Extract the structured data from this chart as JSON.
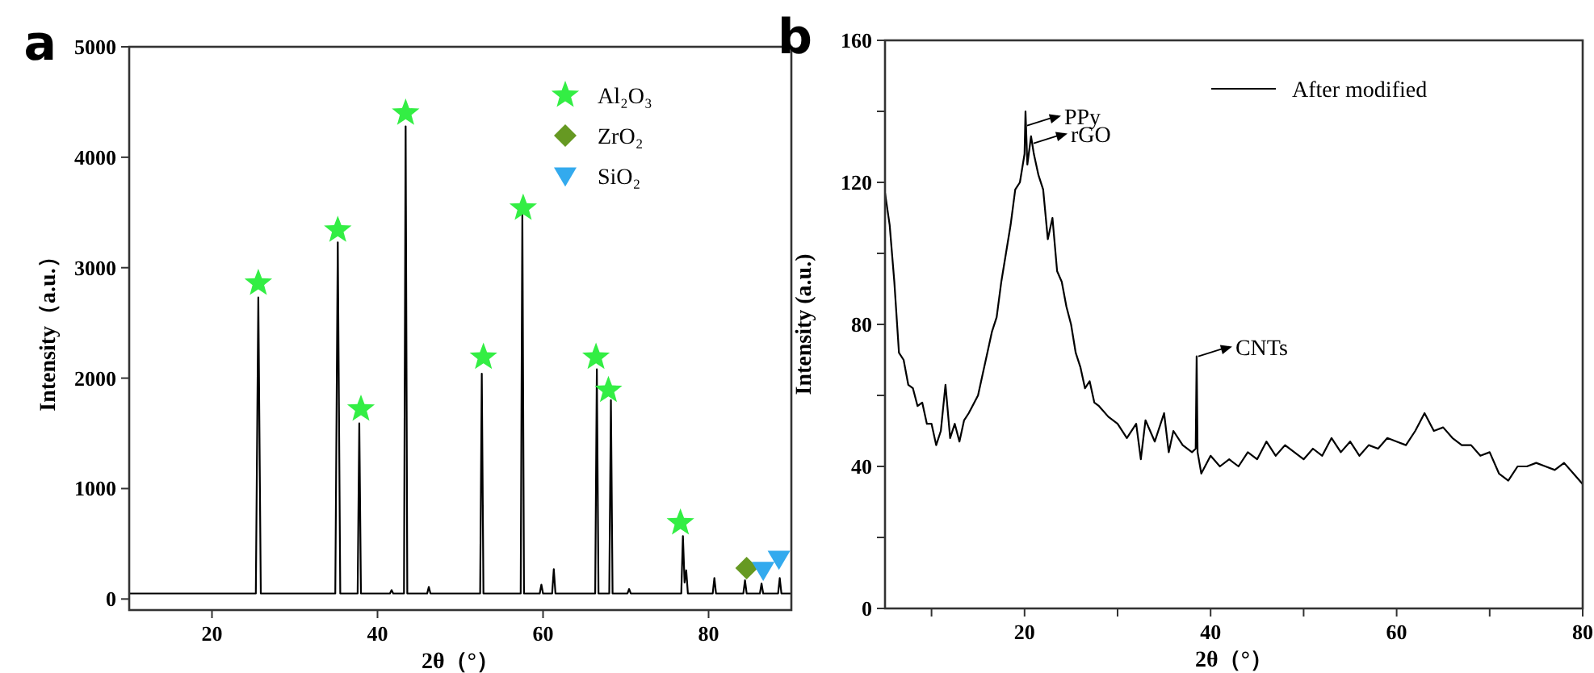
{
  "chart_data": [
    {
      "type": "line",
      "xlabel": "2θ（°）",
      "ylabel": "Intensity（a.u.）",
      "annotations": [
        "a"
      ],
      "xlim": [
        10,
        90
      ],
      "ylim": [
        -100,
        5000
      ],
      "xticks": [
        20,
        40,
        60,
        80
      ],
      "yticks": [
        0,
        1000,
        2000,
        3000,
        4000,
        5000
      ],
      "grid": false,
      "legend": "top right",
      "series": [
        {
          "type": "line",
          "color": "#000000",
          "x": [
            10,
            15,
            20,
            25.3,
            25.6,
            25.9,
            34.9,
            35.2,
            35.5,
            37.6,
            37.8,
            38.0,
            41.5,
            41.7,
            41.9,
            43.2,
            43.4,
            43.6,
            46.0,
            46.2,
            46.4,
            52.4,
            52.6,
            52.8,
            57.3,
            57.5,
            57.7,
            59.6,
            59.8,
            60.0,
            61.1,
            61.3,
            61.5,
            66.3,
            66.5,
            66.7,
            68.0,
            68.2,
            68.4,
            70.2,
            70.4,
            70.6,
            76.7,
            76.9,
            77.1,
            77.3,
            77.5,
            80.5,
            80.7,
            80.9,
            84.2,
            84.4,
            84.6,
            86.2,
            86.4,
            86.6,
            88.4,
            88.6,
            88.8,
            90
          ],
          "values": [
            50,
            50,
            50,
            50,
            2730,
            50,
            50,
            3230,
            50,
            50,
            1590,
            50,
            50,
            80,
            50,
            50,
            4280,
            50,
            50,
            110,
            50,
            50,
            2040,
            50,
            50,
            3520,
            50,
            50,
            130,
            50,
            50,
            270,
            50,
            50,
            2080,
            50,
            50,
            1800,
            50,
            50,
            90,
            50,
            50,
            570,
            150,
            260,
            50,
            50,
            190,
            50,
            50,
            170,
            50,
            50,
            140,
            50,
            50,
            190,
            50,
            50
          ]
        },
        {
          "type": "scatter",
          "name": "Al₂O₃",
          "color": "#33ee44",
          "marker": "star",
          "x": [
            25.6,
            35.2,
            38.0,
            43.4,
            52.8,
            57.6,
            66.4,
            67.9,
            76.6
          ],
          "values": [
            2860,
            3340,
            1720,
            4400,
            2190,
            3540,
            2190,
            1890,
            690
          ]
        },
        {
          "type": "scatter",
          "name": "ZrO₂",
          "color": "#669922",
          "marker": "diamond",
          "x": [
            84.6
          ],
          "values": [
            280
          ]
        },
        {
          "type": "scatter",
          "name": "SiO₂",
          "color": "#33aaee",
          "marker": "triangle",
          "x": [
            86.6,
            88.5
          ],
          "values": [
            260,
            360
          ]
        }
      ]
    },
    {
      "type": "line",
      "xlabel": "2θ（°）",
      "ylabel": "Intensity (a.u.)",
      "annotations": [
        "b",
        {
          "text": "PPy",
          "x": 20.1,
          "y": 136
        },
        {
          "text": "rGO",
          "x": 20.8,
          "y": 131
        },
        {
          "text": "CNTs",
          "x": 38.5,
          "y": 71
        }
      ],
      "xlim": [
        5,
        80
      ],
      "ylim": [
        0,
        160
      ],
      "xticks": [
        {
          "value": 10,
          "label": null
        },
        20,
        {
          "value": 30,
          "label": null
        },
        40,
        {
          "value": 50,
          "label": null
        },
        60,
        {
          "value": 70,
          "label": null
        },
        80
      ],
      "yticks": [
        0,
        {
          "value": 20,
          "label": null
        },
        40,
        {
          "value": 60,
          "label": null
        },
        80,
        {
          "value": 100,
          "label": null
        },
        120,
        {
          "value": 140,
          "label": null
        },
        160
      ],
      "grid": false,
      "legend": "top right",
      "series": [
        {
          "type": "line",
          "name": "After modified",
          "color": "#000000",
          "x": [
            5,
            5.5,
            6,
            6.5,
            7,
            7.5,
            8,
            8.5,
            9,
            9.5,
            10,
            10.5,
            11,
            11.5,
            12,
            12.5,
            13,
            13.5,
            14,
            15,
            15.5,
            16,
            16.5,
            17,
            17.5,
            18,
            18.5,
            19,
            19.5,
            20,
            20.1,
            20.3,
            20.7,
            21,
            21.5,
            22,
            22.5,
            23,
            23.5,
            24,
            24.5,
            25,
            25.5,
            26,
            26.5,
            27,
            27.5,
            28,
            29,
            30,
            31,
            32,
            32.5,
            33,
            34,
            35,
            35.5,
            36,
            37,
            38,
            38.4,
            38.5,
            38.6,
            39,
            40,
            41,
            42,
            43,
            44,
            45,
            46,
            47,
            48,
            49,
            50,
            51,
            52,
            53,
            54,
            55,
            56,
            57,
            58,
            59,
            60,
            61,
            62,
            63,
            64,
            65,
            66,
            67,
            68,
            69,
            70,
            71,
            72,
            73,
            74,
            75,
            76,
            77,
            78,
            79,
            80
          ],
          "values": [
            117,
            108,
            92,
            72,
            70,
            63,
            62,
            57,
            58,
            52,
            52,
            46,
            50,
            63,
            48,
            52,
            47,
            53,
            55,
            60,
            66,
            72,
            78,
            82,
            92,
            100,
            108,
            118,
            120,
            128,
            140,
            125,
            133,
            128,
            122,
            118,
            104,
            110,
            95,
            92,
            85,
            80,
            72,
            68,
            62,
            64,
            58,
            57,
            54,
            52,
            48,
            52,
            42,
            53,
            47,
            55,
            44,
            50,
            46,
            44,
            45,
            71,
            44,
            38,
            43,
            40,
            42,
            40,
            44,
            42,
            47,
            43,
            46,
            44,
            42,
            45,
            43,
            48,
            44,
            47,
            43,
            46,
            45,
            48,
            47,
            46,
            50,
            55,
            50,
            51,
            48,
            46,
            46,
            43,
            44,
            38,
            36,
            40,
            40,
            41,
            40,
            39,
            41,
            38,
            35
          ]
        }
      ]
    }
  ]
}
